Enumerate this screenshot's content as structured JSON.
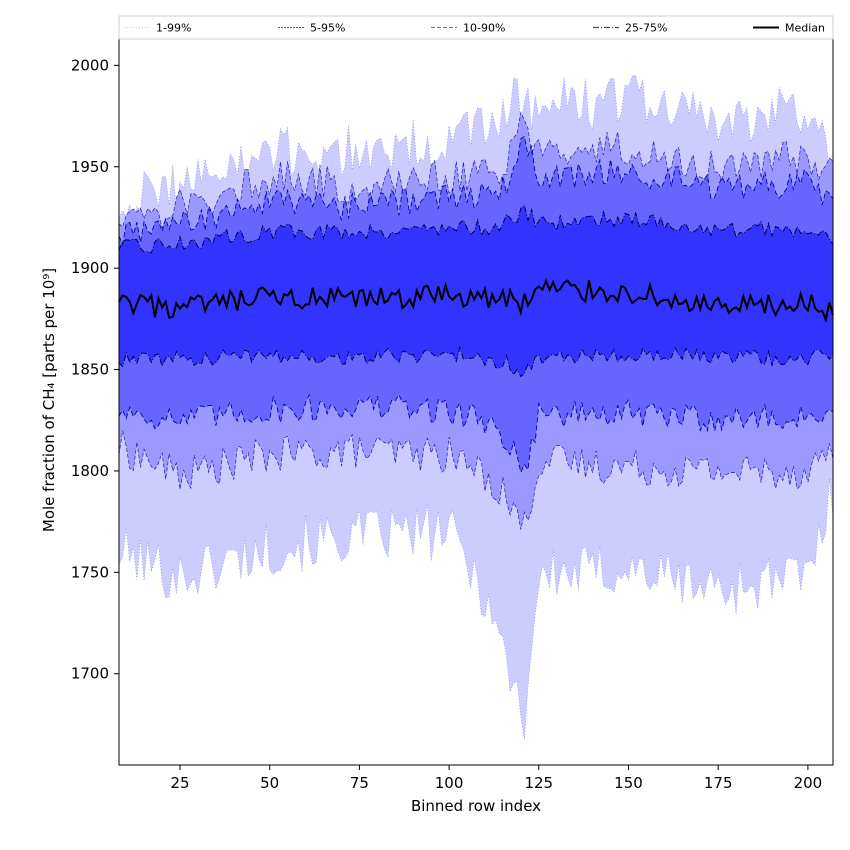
{
  "chart_data": {
    "type": "area",
    "xlabel": "Binned row index",
    "ylabel": "Mole fraction of CH₄ [parts per 10⁹]",
    "xlim": [
      8,
      207
    ],
    "ylim": [
      1655,
      2013
    ],
    "x_ticks": [
      25,
      50,
      75,
      100,
      125,
      150,
      175,
      200
    ],
    "y_ticks": [
      1700,
      1750,
      1800,
      1850,
      1900,
      1950,
      2000
    ],
    "legend_position": "top, spanning full width (single row)",
    "grid": false,
    "colors": {
      "band_1_99": "#ccccff",
      "band_5_95": "#9999ff",
      "band_10_90": "#6666ff",
      "band_25_75": "#3333ff",
      "median": "#000000"
    },
    "x_anchor": [
      8,
      25,
      50,
      75,
      100,
      110,
      115,
      121,
      125,
      150,
      175,
      200,
      207
    ],
    "series": [
      {
        "name": "1-99%",
        "style": "dotted",
        "lower": [
          1760,
          1748,
          1762,
          1768,
          1770,
          1740,
          1712,
          1678,
          1748,
          1752,
          1742,
          1748,
          1790
        ],
        "upper": [
          1930,
          1942,
          1955,
          1958,
          1962,
          1968,
          1978,
          1985,
          1978,
          1985,
          1972,
          1978,
          1960
        ]
      },
      {
        "name": "5-95%",
        "style": "dashed-thin",
        "lower": [
          1812,
          1798,
          1808,
          1810,
          1808,
          1798,
          1790,
          1772,
          1805,
          1802,
          1800,
          1800,
          1812
        ],
        "upper": [
          1925,
          1930,
          1945,
          1940,
          1945,
          1945,
          1950,
          1972,
          1958,
          1960,
          1950,
          1955,
          1948
        ]
      },
      {
        "name": "10-90%",
        "style": "dashed",
        "lower": [
          1830,
          1825,
          1830,
          1832,
          1830,
          1825,
          1818,
          1800,
          1828,
          1828,
          1826,
          1826,
          1832
        ],
        "upper": [
          1918,
          1922,
          1932,
          1930,
          1935,
          1935,
          1940,
          1962,
          1945,
          1948,
          1940,
          1942,
          1935
        ]
      },
      {
        "name": "25-75%",
        "style": "dashdot",
        "lower": [
          1855,
          1855,
          1857,
          1856,
          1858,
          1856,
          1854,
          1848,
          1856,
          1858,
          1856,
          1856,
          1858
        ],
        "upper": [
          1910,
          1912,
          1918,
          1918,
          1920,
          1920,
          1922,
          1928,
          1922,
          1925,
          1918,
          1920,
          1915
        ]
      }
    ],
    "median": {
      "name": "Median",
      "values": [
        1882,
        1880,
        1885,
        1884,
        1887,
        1885,
        1885,
        1883,
        1890,
        1888,
        1880,
        1882,
        1878
      ]
    }
  }
}
